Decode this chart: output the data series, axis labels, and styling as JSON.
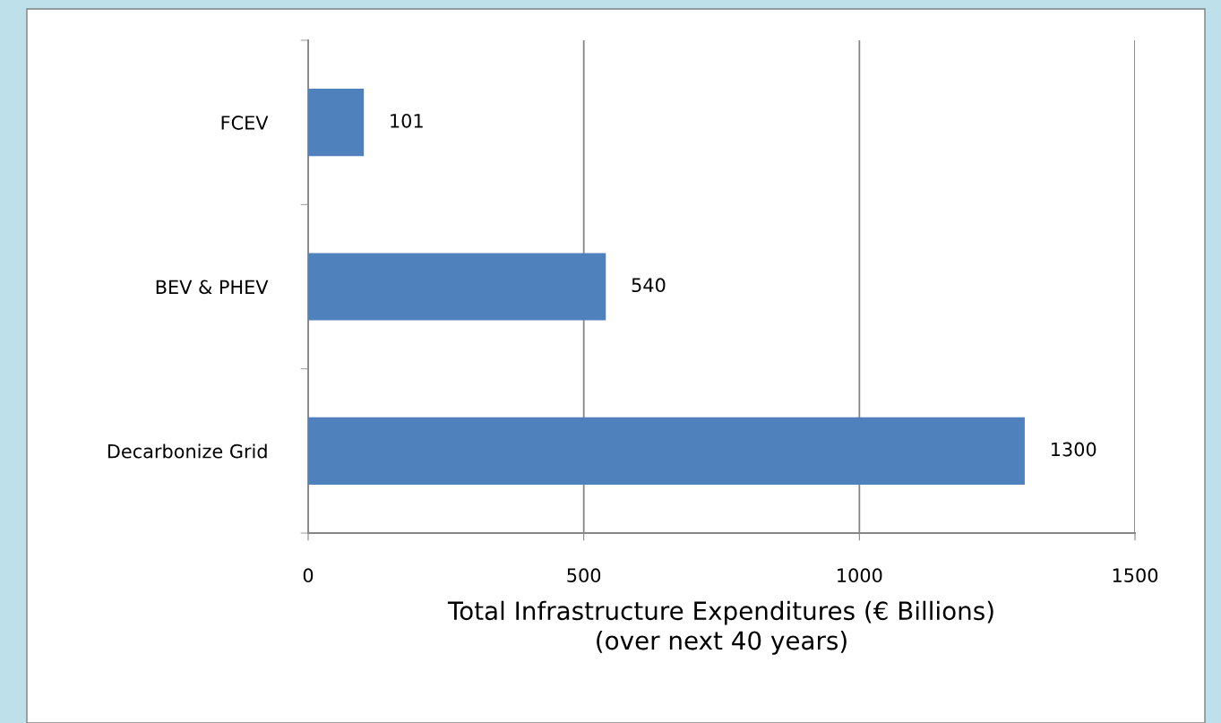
{
  "chart_data": {
    "type": "bar",
    "orientation": "horizontal",
    "categories": [
      "FCEV",
      "BEV & PHEV",
      "Decarbonize Grid"
    ],
    "values": [
      101,
      540,
      1300
    ],
    "color": "#4f81bd",
    "xlabel": "Total Infrastructure Expenditures (€ Billions)\n(over next 40 years)",
    "xlim": [
      0,
      1500
    ],
    "xticks": [
      0,
      500,
      1000,
      1500
    ],
    "grid": "x",
    "data_labels": true
  }
}
